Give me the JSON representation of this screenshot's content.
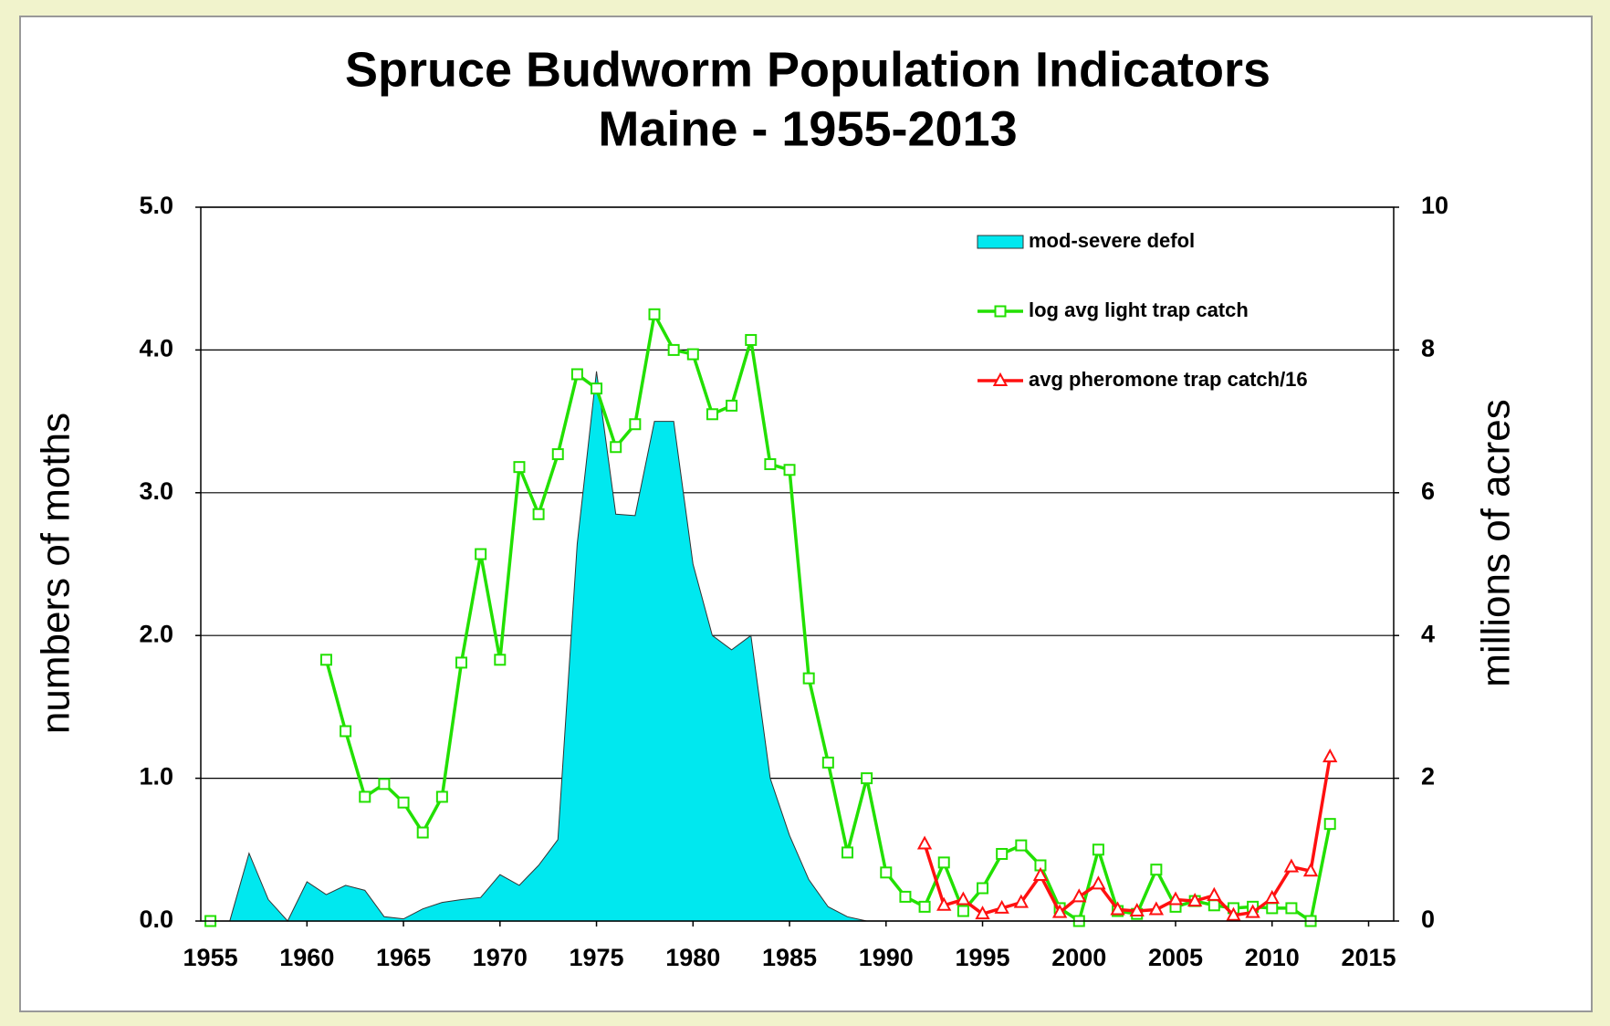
{
  "chart_data": {
    "type": "line",
    "title": "Spruce Budworm Population Indicators",
    "subtitle": "Maine - 1955-2013",
    "ylabel": "numbers of moths",
    "y2label": "millions of acres",
    "x": [
      1955,
      1956,
      1957,
      1958,
      1959,
      1960,
      1961,
      1962,
      1963,
      1964,
      1965,
      1966,
      1967,
      1968,
      1969,
      1970,
      1971,
      1972,
      1973,
      1974,
      1975,
      1976,
      1977,
      1978,
      1979,
      1980,
      1981,
      1982,
      1983,
      1984,
      1985,
      1986,
      1987,
      1988,
      1989,
      1990,
      1991,
      1992,
      1993,
      1994,
      1995,
      1996,
      1997,
      1998,
      1999,
      2000,
      2001,
      2002,
      2003,
      2004,
      2005,
      2006,
      2007,
      2008,
      2009,
      2010,
      2011,
      2012,
      2013
    ],
    "xlim": [
      1954.5,
      2016.3
    ],
    "xticks": [
      1955,
      1960,
      1965,
      1970,
      1975,
      1980,
      1985,
      1990,
      1995,
      2000,
      2005,
      2010,
      2015
    ],
    "ylim": [
      0,
      5
    ],
    "yticks": [
      {
        "value": 0,
        "label": "0.0"
      },
      {
        "value": 1,
        "label": "1.0"
      },
      {
        "value": 2,
        "label": "2.0"
      },
      {
        "value": 3,
        "label": "3.0"
      },
      {
        "value": 4,
        "label": "4.0"
      },
      {
        "value": 5,
        "label": "5.0"
      }
    ],
    "y2lim": [
      0,
      10
    ],
    "y2ticks": [
      0,
      2,
      4,
      6,
      8,
      10
    ],
    "grid": true,
    "legend": "upper right",
    "series": [
      {
        "name": "mod-severe defol",
        "type": "area",
        "axis": "y2",
        "color": "#00e8ef",
        "values": [
          null,
          0,
          0.95,
          0.3,
          0,
          0.55,
          0.37,
          0.5,
          0.43,
          0.06,
          0.03,
          0.17,
          0.26,
          0.3,
          0.33,
          0.65,
          0.5,
          0.78,
          1.14,
          5.28,
          7.7,
          5.7,
          5.68,
          7.0,
          7.0,
          5.0,
          4.0,
          3.8,
          4.0,
          2.0,
          1.2,
          0.58,
          0.2,
          0.06,
          0,
          null,
          null,
          null,
          null,
          null,
          null,
          null,
          null,
          null,
          null,
          null,
          null,
          null,
          null,
          null,
          null,
          null,
          null,
          null,
          null,
          null,
          null,
          null,
          null
        ]
      },
      {
        "name": "log avg light trap catch",
        "type": "line",
        "marker": "square",
        "color": "#22e000",
        "values": [
          0,
          null,
          null,
          null,
          null,
          null,
          1.83,
          1.33,
          0.87,
          0.96,
          0.83,
          0.62,
          0.87,
          1.81,
          2.57,
          1.83,
          3.18,
          2.85,
          3.27,
          3.83,
          3.73,
          3.32,
          3.48,
          4.25,
          4.0,
          3.97,
          3.55,
          3.61,
          4.07,
          3.2,
          3.16,
          1.7,
          1.11,
          0.48,
          1.0,
          0.34,
          0.17,
          0.1,
          0.41,
          0.07,
          0.23,
          0.47,
          0.53,
          0.39,
          0.09,
          0,
          0.5,
          0.07,
          0.05,
          0.36,
          0.1,
          0.14,
          0.11,
          0.09,
          0.1,
          0.09,
          0.09,
          0,
          0.68
        ]
      },
      {
        "name": "avg pheromone trap catch/16",
        "type": "line",
        "marker": "triangle",
        "color": "#ff1010",
        "values": [
          null,
          null,
          null,
          null,
          null,
          null,
          null,
          null,
          null,
          null,
          null,
          null,
          null,
          null,
          null,
          null,
          null,
          null,
          null,
          null,
          null,
          null,
          null,
          null,
          null,
          null,
          null,
          null,
          null,
          null,
          null,
          null,
          null,
          null,
          null,
          null,
          null,
          0.54,
          0.11,
          0.15,
          0.05,
          0.09,
          0.13,
          0.32,
          0.06,
          0.17,
          0.26,
          0.08,
          0.07,
          0.08,
          0.15,
          0.14,
          0.18,
          0.04,
          0.06,
          0.16,
          0.38,
          0.35,
          1.15
        ]
      }
    ]
  }
}
